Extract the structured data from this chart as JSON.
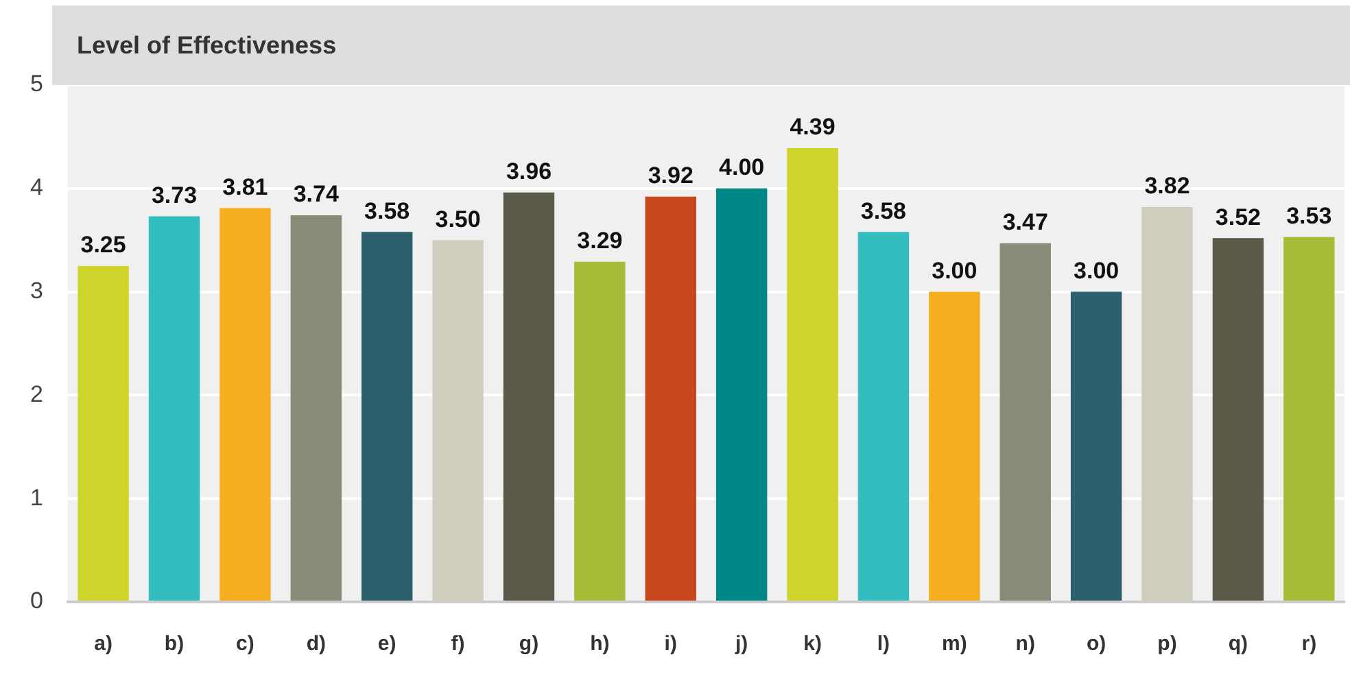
{
  "chart_data": {
    "type": "bar",
    "title": "Level of Effectiveness",
    "categories": [
      "a)",
      "b)",
      "c)",
      "d)",
      "e)",
      "f)",
      "g)",
      "h)",
      "i)",
      "j)",
      "k)",
      "l)",
      "m)",
      "n)",
      "o)",
      "p)",
      "q)",
      "r)"
    ],
    "values": [
      3.25,
      3.73,
      3.81,
      3.74,
      3.58,
      3.5,
      3.96,
      3.29,
      3.92,
      4.0,
      4.39,
      3.58,
      3.0,
      3.47,
      3.0,
      3.82,
      3.52,
      3.53
    ],
    "value_labels": [
      "3.25",
      "3.73",
      "3.81",
      "3.74",
      "3.58",
      "3.50",
      "3.96",
      "3.29",
      "3.92",
      "4.00",
      "4.39",
      "3.58",
      "3.00",
      "3.47",
      "3.00",
      "3.82",
      "3.52",
      "3.53"
    ],
    "colors": [
      "#cfd42a",
      "#33bdbe",
      "#f5ae1f",
      "#8a8a78",
      "#2d606c",
      "#cfcdbe",
      "#5b5a4a",
      "#a8bc38",
      "#c8471c",
      "#008888",
      "#cfd42a",
      "#33bdbe",
      "#f5ae1f",
      "#8a8a78",
      "#2d606c",
      "#cfcdbe",
      "#5b5a4a",
      "#a8bc38"
    ],
    "ylim": [
      0,
      5
    ],
    "yticks": [
      0,
      1,
      2,
      3,
      4,
      5
    ],
    "grid": "y"
  }
}
